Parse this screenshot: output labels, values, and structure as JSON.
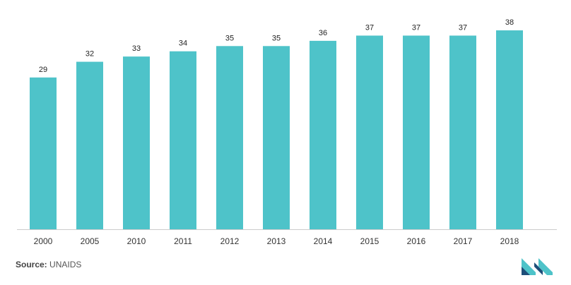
{
  "chart_data": {
    "type": "bar",
    "categories": [
      "2000",
      "2005",
      "2010",
      "2011",
      "2012",
      "2013",
      "2014",
      "2015",
      "2016",
      "2017",
      "2018"
    ],
    "values": [
      29,
      32,
      33,
      34,
      35,
      35,
      36,
      37,
      37,
      37,
      38
    ],
    "data_labels": [
      "29",
      "32",
      "33",
      "34",
      "35",
      "35",
      "36",
      "37",
      "37",
      "37",
      "38"
    ],
    "title": "",
    "xlabel": "",
    "ylabel": "",
    "ylim": [
      0,
      40
    ],
    "grid": false,
    "legend": "none",
    "bar_color": "#4ec3c9",
    "axis_color": "#cccccc"
  },
  "source": {
    "label": "Source:",
    "text": "UNAIDS"
  },
  "logo": {
    "icon": "mordor-logo-icon",
    "colors": [
      "#1e4e79",
      "#4ec3c9"
    ]
  }
}
